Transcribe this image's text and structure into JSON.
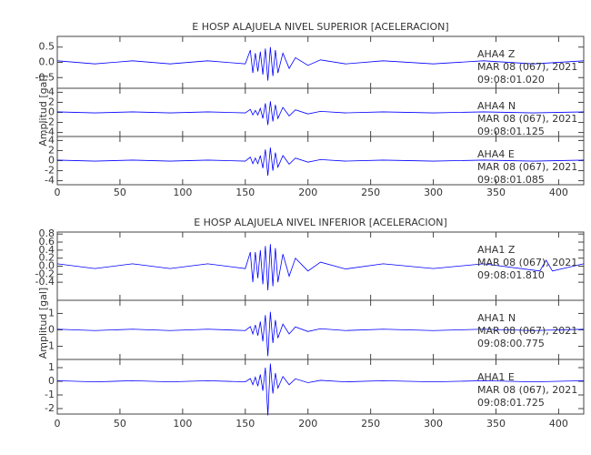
{
  "chart_data": [
    {
      "type": "line",
      "title": "E HOSP ALAJUELA NIVEL SUPERIOR [ACELERACION]",
      "y_label": "Amplitud [gal]",
      "xlim": [
        0,
        420
      ],
      "xticks": [
        0,
        50,
        100,
        150,
        200,
        250,
        300,
        350,
        400
      ],
      "panels": [
        {
          "ylim": [
            -0.85,
            0.85
          ],
          "yticks": [
            -0.5,
            {
              "value": 0,
              "label": "0.0"
            },
            0.5
          ],
          "station": "AHA4   Z",
          "date": "MAR 08 (067), 2021",
          "time": "09:08:01.020",
          "series": [
            {
              "color": "#0000ff",
              "x": [
                0,
                30,
                60,
                90,
                120,
                150,
                154,
                156,
                158,
                160,
                162,
                164,
                166,
                168,
                170,
                172,
                174,
                176,
                180,
                185,
                190,
                200,
                210,
                230,
                260,
                300,
                340,
                380,
                420
              ],
              "values": [
                0.05,
                -0.05,
                0.05,
                -0.05,
                0.05,
                -0.05,
                0.4,
                -0.35,
                0.3,
                -0.3,
                0.35,
                -0.4,
                0.45,
                -0.6,
                0.5,
                -0.45,
                0.4,
                -0.35,
                0.3,
                -0.2,
                0.15,
                -0.1,
                0.08,
                -0.05,
                0.05,
                -0.05,
                0.05,
                -0.05,
                0.05
              ]
            }
          ]
        },
        {
          "ylim": [
            -4.8,
            4.8
          ],
          "yticks": [
            -4,
            -2,
            0,
            2,
            4
          ],
          "station": "AHA4   N",
          "date": "MAR 08 (067), 2021",
          "time": "09:08:01.125",
          "series": [
            {
              "color": "#0000ff",
              "x": [
                0,
                30,
                60,
                90,
                120,
                150,
                154,
                156,
                158,
                160,
                162,
                164,
                166,
                168,
                170,
                172,
                174,
                176,
                180,
                185,
                190,
                200,
                210,
                230,
                260,
                300,
                340,
                380,
                420
              ],
              "values": [
                0.1,
                -0.1,
                0.1,
                -0.1,
                0.1,
                -0.1,
                0.6,
                -0.5,
                0.4,
                -0.5,
                0.8,
                -1.2,
                1.8,
                -2.5,
                2.2,
                -1.8,
                1.5,
                -1.2,
                1.0,
                -0.7,
                0.5,
                -0.3,
                0.2,
                -0.1,
                0.1,
                -0.1,
                0.1,
                -0.1,
                0.1
              ]
            }
          ]
        },
        {
          "ylim": [
            -4.8,
            4.8
          ],
          "yticks": [
            -4,
            -2,
            0,
            2,
            4
          ],
          "station": "AHA4   E",
          "date": "MAR 08 (067), 2021",
          "time": "09:08:01.085",
          "series": [
            {
              "color": "#0000ff",
              "x": [
                0,
                30,
                60,
                90,
                120,
                150,
                154,
                156,
                158,
                160,
                162,
                164,
                166,
                168,
                170,
                172,
                174,
                176,
                180,
                185,
                190,
                200,
                210,
                230,
                260,
                300,
                340,
                380,
                420
              ],
              "values": [
                0.1,
                -0.1,
                0.1,
                -0.1,
                0.1,
                -0.1,
                0.7,
                -0.6,
                0.5,
                -0.6,
                1.0,
                -1.5,
                2.2,
                -3.0,
                2.6,
                -2.0,
                1.6,
                -1.3,
                1.0,
                -0.7,
                0.5,
                -0.3,
                0.2,
                -0.1,
                0.1,
                -0.1,
                0.1,
                -0.1,
                0.1
              ]
            }
          ]
        }
      ]
    },
    {
      "type": "line",
      "title": "E HOSP ALAJUELA NIVEL INFERIOR [ACELERACION]",
      "y_label": "Amplitud [gal]",
      "xlim": [
        0,
        420
      ],
      "xticks": [
        0,
        50,
        100,
        150,
        200,
        250,
        300,
        350,
        400
      ],
      "panels": [
        {
          "ylim": [
            -0.85,
            0.85
          ],
          "yticks": [
            -0.4,
            -0.2,
            {
              "value": 0,
              "label": "0.0"
            },
            0.2,
            0.4,
            0.6,
            0.8
          ],
          "station": "AHA1   Z",
          "date": "MAR 08 (067), 2021",
          "time": "09:08:01.810",
          "series": [
            {
              "color": "#0000ff",
              "x": [
                0,
                30,
                60,
                90,
                120,
                150,
                154,
                156,
                158,
                160,
                162,
                164,
                166,
                168,
                170,
                172,
                174,
                176,
                180,
                185,
                190,
                200,
                210,
                230,
                260,
                300,
                340,
                385,
                390,
                395,
                420
              ],
              "values": [
                0.06,
                -0.06,
                0.06,
                -0.06,
                0.06,
                -0.06,
                0.35,
                -0.4,
                0.35,
                -0.3,
                0.4,
                -0.45,
                0.5,
                -0.6,
                0.55,
                -0.5,
                0.45,
                -0.4,
                0.3,
                -0.25,
                0.2,
                -0.12,
                0.1,
                -0.07,
                0.06,
                -0.06,
                0.06,
                -0.12,
                0.15,
                -0.12,
                0.06
              ]
            }
          ]
        },
        {
          "ylim": [
            -1.8,
            1.8
          ],
          "yticks": [
            -1,
            0,
            1
          ],
          "station": "AHA1   N",
          "date": "MAR 08 (067), 2021",
          "time": "09:08:00.775",
          "series": [
            {
              "color": "#0000ff",
              "x": [
                0,
                30,
                60,
                90,
                120,
                150,
                154,
                156,
                158,
                160,
                162,
                164,
                166,
                168,
                170,
                172,
                174,
                176,
                180,
                185,
                190,
                200,
                210,
                230,
                260,
                300,
                340,
                380,
                420
              ],
              "values": [
                0.04,
                -0.04,
                0.04,
                -0.04,
                0.04,
                -0.04,
                0.2,
                -0.25,
                0.3,
                -0.35,
                0.5,
                -0.7,
                0.9,
                -1.6,
                1.1,
                -0.8,
                0.6,
                -0.5,
                0.35,
                -0.25,
                0.18,
                -0.1,
                0.07,
                -0.04,
                0.04,
                -0.04,
                0.04,
                -0.04,
                0.04
              ]
            }
          ]
        },
        {
          "ylim": [
            -2.4,
            1.6
          ],
          "yticks": [
            -2,
            -1,
            0,
            1
          ],
          "station": "AHA1   E",
          "date": "MAR 08 (067), 2021",
          "time": "09:08:01.725",
          "series": [
            {
              "color": "#0000ff",
              "x": [
                0,
                30,
                60,
                90,
                120,
                150,
                154,
                156,
                158,
                160,
                162,
                164,
                166,
                168,
                170,
                172,
                174,
                176,
                180,
                185,
                190,
                200,
                210,
                230,
                260,
                300,
                340,
                380,
                420
              ],
              "values": [
                0.04,
                -0.04,
                0.04,
                -0.04,
                0.04,
                -0.04,
                0.2,
                -0.25,
                0.3,
                -0.35,
                0.5,
                -0.7,
                1.0,
                -2.5,
                1.3,
                -0.9,
                0.6,
                -0.5,
                0.35,
                -0.25,
                0.18,
                -0.1,
                0.07,
                -0.04,
                0.04,
                -0.04,
                0.04,
                -0.04,
                0.04
              ]
            }
          ]
        }
      ]
    }
  ]
}
